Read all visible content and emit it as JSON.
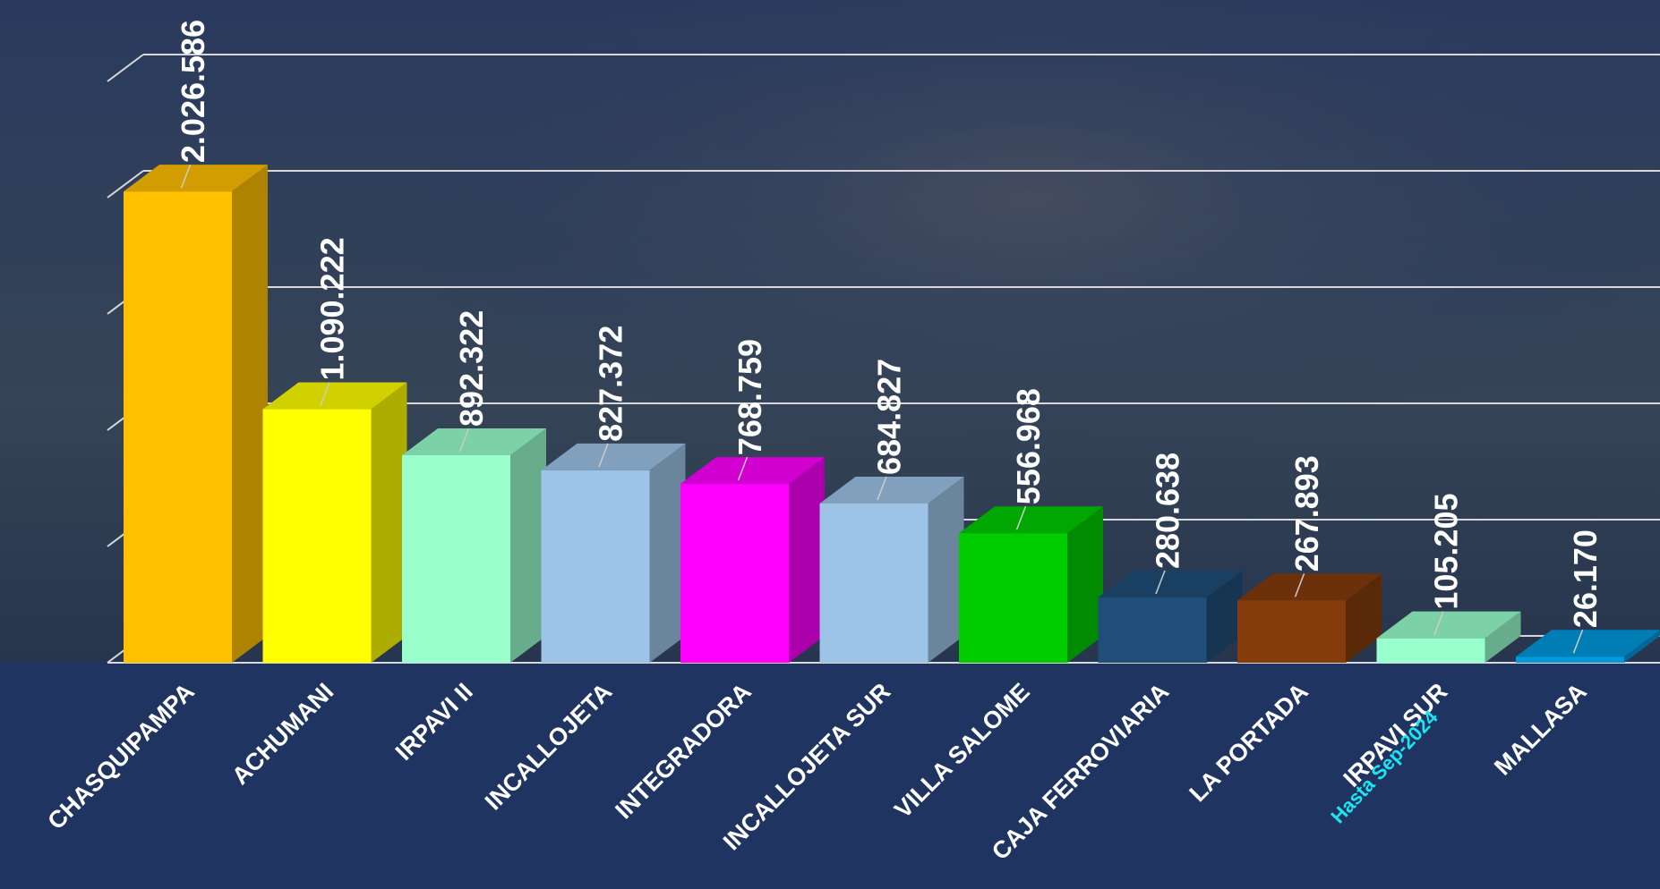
{
  "chart_data": {
    "type": "bar3d",
    "categories": [
      "CHASQUIPAMPA",
      "ACHUMANI",
      "IRPAVI II",
      "INCALLOJETA",
      "INTEGRADORA",
      "INCALLOJETA SUR",
      "VILLA SALOME",
      "CAJA FERROVIARIA",
      "LA PORTADA",
      "IRPAVI SUR",
      "MALLASA"
    ],
    "values": [
      2026586,
      1090222,
      892322,
      827372,
      768759,
      684827,
      556968,
      280638,
      267893,
      105205,
      26170
    ],
    "value_labels": [
      "2.026.586",
      "1.090.222",
      "892.322",
      "827.372",
      "768.759",
      "684.827",
      "556.968",
      "280.638",
      "267.893",
      "105.205",
      "26.170"
    ],
    "colors": [
      "#ffc000",
      "#ffff00",
      "#99ffcc",
      "#9dc3e6",
      "#ff00ff",
      "#9dc3e6",
      "#00cc00",
      "#1f4e79",
      "#843c0c",
      "#99ffcc",
      "#0099dd"
    ],
    "ylim": [
      0,
      2500000
    ],
    "yticks": [
      0,
      500000,
      1000000,
      1500000,
      2000000,
      2500000
    ],
    "grid": true,
    "annotation": "Hasta Sep-2024"
  }
}
